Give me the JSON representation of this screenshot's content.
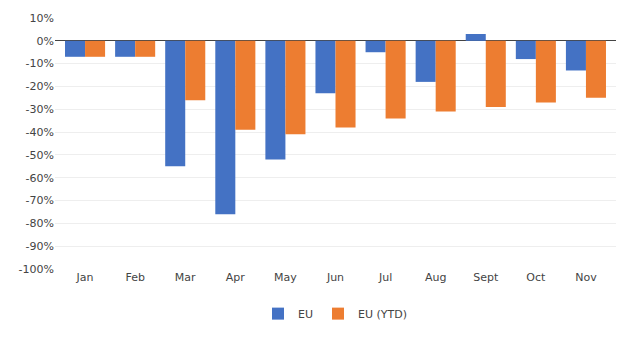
{
  "chart_data": {
    "type": "bar",
    "categories": [
      "Jan",
      "Feb",
      "Mar",
      "Apr",
      "May",
      "Jun",
      "Jul",
      "Aug",
      "Sept",
      "Oct",
      "Nov"
    ],
    "series": [
      {
        "name": "EU",
        "color": "#4472C4",
        "values": [
          -7,
          -7,
          -55,
          -76,
          -52,
          -23,
          -5,
          -18,
          3,
          -8,
          -13
        ]
      },
      {
        "name": "EU (YTD)",
        "color": "#ED7D31",
        "values": [
          -7,
          -7,
          -26,
          -39,
          -41,
          -38,
          -34,
          -31,
          -29,
          -27,
          -25
        ]
      }
    ],
    "ylim": [
      -100,
      10
    ],
    "yticks": [
      {
        "value": 10,
        "label": "10%"
      },
      {
        "value": 0,
        "label": "0%"
      },
      {
        "value": -10,
        "label": "-10%"
      },
      {
        "value": -20,
        "label": "-20%"
      },
      {
        "value": -30,
        "label": "-30%"
      },
      {
        "value": -40,
        "label": "-40%"
      },
      {
        "value": -50,
        "label": "-50%"
      },
      {
        "value": -60,
        "label": "-60%"
      },
      {
        "value": -70,
        "label": "-70%"
      },
      {
        "value": -80,
        "label": "-80%"
      },
      {
        "value": -90,
        "label": "-90%"
      },
      {
        "value": -100,
        "label": "-100%"
      }
    ],
    "grid": true,
    "legend": "bottom"
  }
}
